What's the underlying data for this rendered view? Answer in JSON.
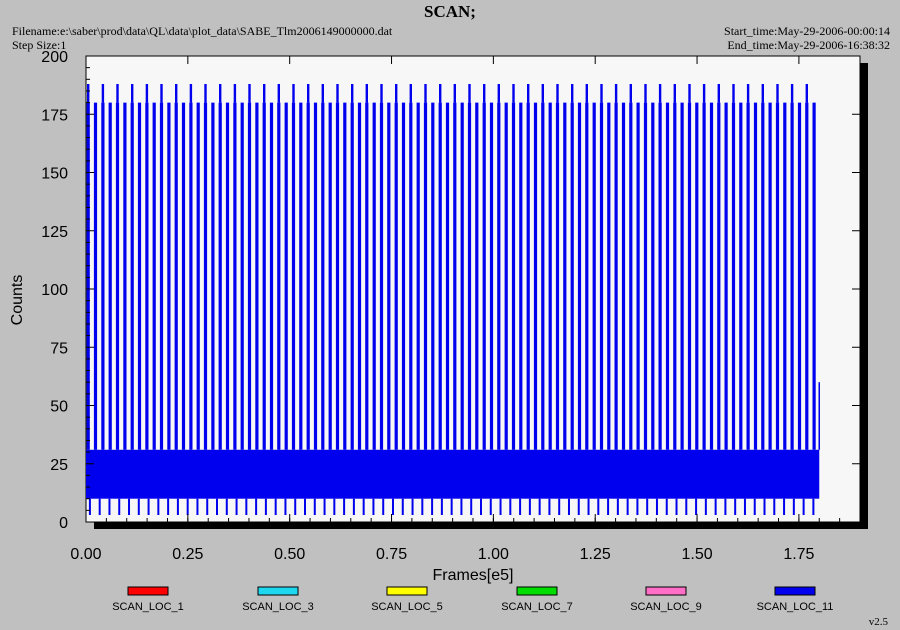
{
  "header": {
    "title": "SCAN;",
    "filename": "Filename:e:\\saber\\prod\\data\\QL\\data\\plot_data\\SABE_Tlm2006149000000.dat",
    "step_size": "Step Size:1",
    "start_time": "Start_time:May-29-2006-00:00:14",
    "end_time": "End_time:May-29-2006-16:38:32"
  },
  "version": "v2.5",
  "chart_data": {
    "type": "line",
    "title": "SCAN;",
    "xlabel": "Frames[e5]",
    "ylabel": "Counts",
    "xlim": [
      0,
      1.9
    ],
    "ylim": [
      0,
      200
    ],
    "xticks": [
      "0.00",
      "0.25",
      "0.50",
      "0.75",
      "1.00",
      "1.25",
      "1.50",
      "1.75"
    ],
    "yticks": [
      "0",
      "25",
      "50",
      "75",
      "100",
      "125",
      "150",
      "175",
      "200"
    ],
    "legend_position": "bottom",
    "series": [
      {
        "name": "SCAN_LOC_1",
        "color": "#ff0000"
      },
      {
        "name": "SCAN_LOC_3",
        "color": "#1ed8f0"
      },
      {
        "name": "SCAN_LOC_5",
        "color": "#ffff00"
      },
      {
        "name": "SCAN_LOC_7",
        "color": "#00dd00"
      },
      {
        "name": "SCAN_LOC_9",
        "color": "#ff6ec7"
      },
      {
        "name": "SCAN_LOC_11",
        "color": "#0000ee",
        "band_range": [
          10,
          31
        ],
        "high_spike_value": 188,
        "plateau_value": 180,
        "data_end_x": 1.8
      }
    ]
  }
}
